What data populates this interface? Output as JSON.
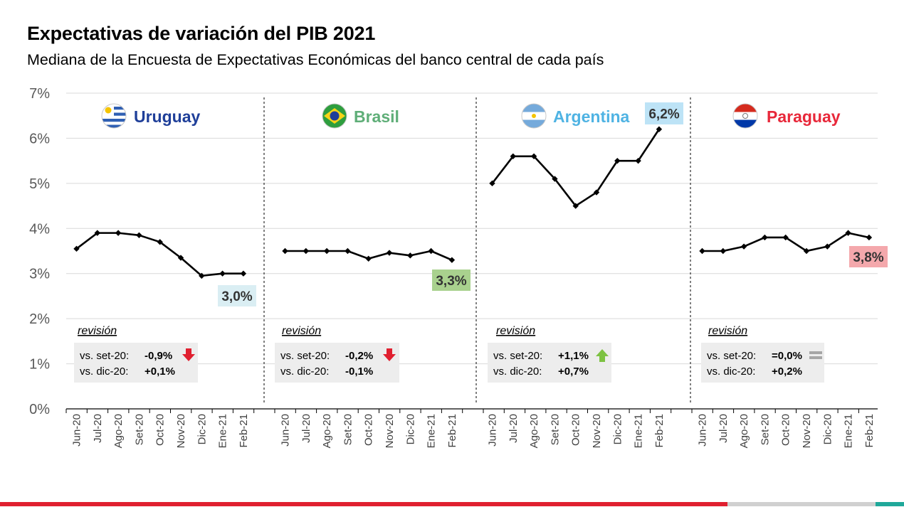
{
  "title": "Expectativas de variación del PIB 2021",
  "subtitle": "Mediana de la Encuesta de Expectativas Económicas del banco central de cada país",
  "chart_data": {
    "type": "line",
    "ylim": [
      0,
      7
    ],
    "yticks": [
      "0%",
      "1%",
      "2%",
      "3%",
      "4%",
      "5%",
      "6%",
      "7%"
    ],
    "grid": true,
    "categories": [
      "Jun-20",
      "Jul-20",
      "Ago-20",
      "Set-20",
      "Oct-20",
      "Nov-20",
      "Dic-20",
      "Ene-21",
      "Feb-21"
    ],
    "revision_heading": "revisión",
    "panels": [
      {
        "name": "Uruguay",
        "flag": "uruguay-flag-icon",
        "name_color": "#1F3F99",
        "values": [
          3.55,
          3.9,
          3.9,
          3.85,
          3.7,
          3.35,
          2.95,
          3.0,
          3.0
        ],
        "label": "3,0%",
        "label_bg": "#DAEEF3",
        "revision": [
          {
            "text": "vs. set-20:",
            "value": "-0,9%",
            "arrow": "down-arrow-icon"
          },
          {
            "text": "vs. dic-20:",
            "value": "+0,1%",
            "arrow": ""
          }
        ]
      },
      {
        "name": "Brasil",
        "flag": "brazil-flag-icon",
        "name_color": "#5FAE78",
        "values": [
          3.5,
          3.5,
          3.5,
          3.5,
          3.33,
          3.46,
          3.4,
          3.5,
          3.3
        ],
        "label": "3,3%",
        "label_bg": "#A9D18E",
        "revision": [
          {
            "text": "vs. set-20:",
            "value": "-0,2%",
            "arrow": "down-arrow-icon"
          },
          {
            "text": "vs. dic-20:",
            "value": "-0,1%",
            "arrow": ""
          }
        ]
      },
      {
        "name": "Argentina",
        "flag": "argentina-flag-icon",
        "name_color": "#4FB3E3",
        "values": [
          5.0,
          5.6,
          5.6,
          5.1,
          4.5,
          4.8,
          5.5,
          5.5,
          6.2
        ],
        "label": "6,2%",
        "label_bg": "#BDE3F6",
        "revision": [
          {
            "text": "vs. set-20:",
            "value": "+1,1%",
            "arrow": "up-arrow-icon"
          },
          {
            "text": "vs. dic-20:",
            "value": "+0,7%",
            "arrow": ""
          }
        ]
      },
      {
        "name": "Paraguay",
        "flag": "paraguay-flag-icon",
        "name_color": "#E8283A",
        "values": [
          3.5,
          3.5,
          3.6,
          3.8,
          3.8,
          3.5,
          3.6,
          3.9,
          3.8
        ],
        "label": "3,8%",
        "label_bg": "#F4A8AC",
        "revision": [
          {
            "text": "vs. set-20:",
            "value": "=0,0%",
            "arrow": "equal-icon"
          },
          {
            "text": "vs. dic-20:",
            "value": "+0,2%",
            "arrow": ""
          }
        ]
      }
    ]
  },
  "colors": {
    "line": "#000000",
    "grid": "#D9D9D9",
    "revision_box": "#EDEDED",
    "down_arrow": "#E02030",
    "up_arrow": "#7DC242",
    "equal": "#A6A6A6",
    "footer_red": "#E02030",
    "footer_gray": "#D0D0D0",
    "footer_teal": "#1FA89A"
  }
}
